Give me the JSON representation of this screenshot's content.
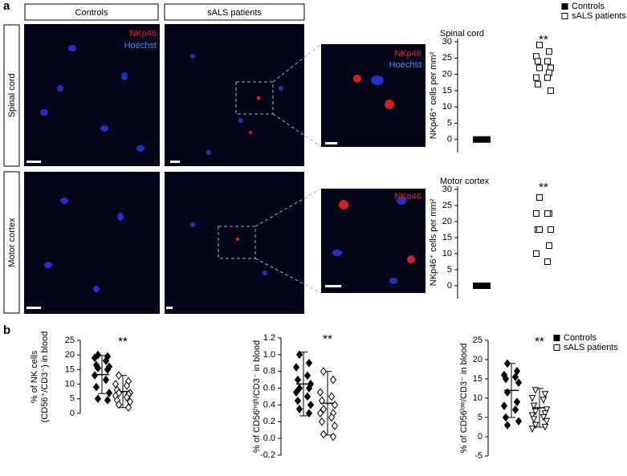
{
  "figure": {
    "panel_labels": [
      "a",
      "b"
    ],
    "columns": [
      "Controls",
      "sALS patients"
    ],
    "rows": [
      "Spinal cord",
      "Motor cortex"
    ],
    "stain_labels": [
      "NKp46",
      "Hoechst"
    ]
  },
  "chart_data": [
    {
      "type": "dotplot",
      "title": "Spinal cord",
      "annotation": "**",
      "y_label": "NKp46⁺ cells per mm²",
      "ylim": [
        -4,
        31
      ],
      "yticks": [
        0,
        5,
        10,
        15,
        20,
        25,
        30
      ],
      "series": [
        {
          "name": "Controls",
          "color": "#000000",
          "marker": "square",
          "filled": true,
          "values": [
            0,
            0,
            0
          ]
        },
        {
          "name": "sALS patients",
          "color": "#000000",
          "marker": "square",
          "filled": false,
          "values": [
            29,
            27,
            25.5,
            24,
            24,
            22,
            22,
            20.5,
            19,
            19,
            17,
            15
          ]
        }
      ]
    },
    {
      "type": "dotplot",
      "title": "Motor cortex",
      "annotation": "**",
      "y_label": "NKp46⁺ cells per mm²",
      "ylim": [
        -4,
        31
      ],
      "yticks": [
        0,
        5,
        10,
        15,
        20,
        25,
        30
      ],
      "series": [
        {
          "color": "#000000",
          "marker": "square",
          "filled": true,
          "values": [
            0,
            0,
            0
          ]
        },
        {
          "color": "#000000",
          "marker": "square",
          "filled": false,
          "values": [
            27.5,
            22.5,
            22.5,
            22.5,
            17.5,
            17.5,
            17.5,
            12.5,
            10,
            7.5
          ]
        }
      ]
    },
    {
      "type": "dotplot",
      "annotation": "**",
      "y_label": [
        "% of NK cells",
        "(CD56⁺/CD3⁻) in blood"
      ],
      "ylim": [
        0,
        25
      ],
      "yticks": [
        0,
        5,
        10,
        15,
        20,
        25
      ],
      "series": [
        {
          "name": "Controls",
          "color": "#000000",
          "marker": "diamond",
          "filled": true,
          "mean": 13.3,
          "sd": 6.5,
          "values": [
            20,
            19.5,
            19,
            18,
            16.5,
            16,
            15.5,
            15,
            13,
            11.5,
            9,
            7,
            5,
            4.5
          ]
        },
        {
          "name": "sALS patients",
          "color": "#000000",
          "marker": "diamond",
          "filled": false,
          "mean": 7.5,
          "sd": 5.5,
          "values": [
            13,
            11,
            10,
            9.5,
            8,
            7,
            7,
            6.5,
            6,
            5.5,
            4.5,
            4,
            3,
            2
          ]
        }
      ]
    },
    {
      "type": "dotplot",
      "annotation": "**",
      "y_label": [
        "% of CD56ʰⁱᵍʰ/CD3⁻ in blood"
      ],
      "ylim": [
        -0.2,
        1.2
      ],
      "yticks": [
        -0.2,
        {
          "value": 0,
          "label": "0.0"
        },
        0.2,
        0.4,
        0.6,
        0.8,
        {
          "value": 1,
          "label": "1.0"
        },
        1.2
      ],
      "series": [
        {
          "color": "#000000",
          "marker": "diamond",
          "filled": true,
          "mean": 0.65,
          "sd": 0.38,
          "values": [
            1.0,
            0.9,
            0.85,
            0.75,
            0.7,
            0.65,
            0.6,
            0.6,
            0.55,
            0.5,
            0.45,
            0.4,
            0.35,
            0.3
          ]
        },
        {
          "color": "#000000",
          "marker": "diamond",
          "filled": false,
          "mean": 0.42,
          "sd": 0.38,
          "values": [
            0.8,
            0.7,
            0.55,
            0.5,
            0.45,
            0.4,
            0.35,
            0.3,
            0.3,
            0.25,
            0.2,
            0.15,
            0.05,
            0.02
          ]
        }
      ]
    },
    {
      "type": "dotplot",
      "annotation": "**",
      "y_label": [
        "% of CD56ˡᵒʷ/CD3⁻ in blood"
      ],
      "ylim": [
        -5,
        25
      ],
      "yticks": [
        -5,
        0,
        5,
        10,
        15,
        20,
        25
      ],
      "series": [
        {
          "color": "#000000",
          "marker": "diamond",
          "filled": true,
          "mean": 12,
          "sd": 7,
          "values": [
            19,
            17,
            16,
            15.5,
            15,
            14,
            11.5,
            9,
            8,
            7,
            5,
            4,
            3
          ]
        },
        {
          "color": "#000000",
          "marker": "triangle",
          "filled": false,
          "mean": 7.5,
          "sd": 5,
          "values": [
            12,
            11,
            10,
            9.5,
            8,
            7,
            6.5,
            6,
            5.5,
            5,
            4.5,
            4,
            3,
            2.5,
            2
          ]
        }
      ]
    }
  ]
}
